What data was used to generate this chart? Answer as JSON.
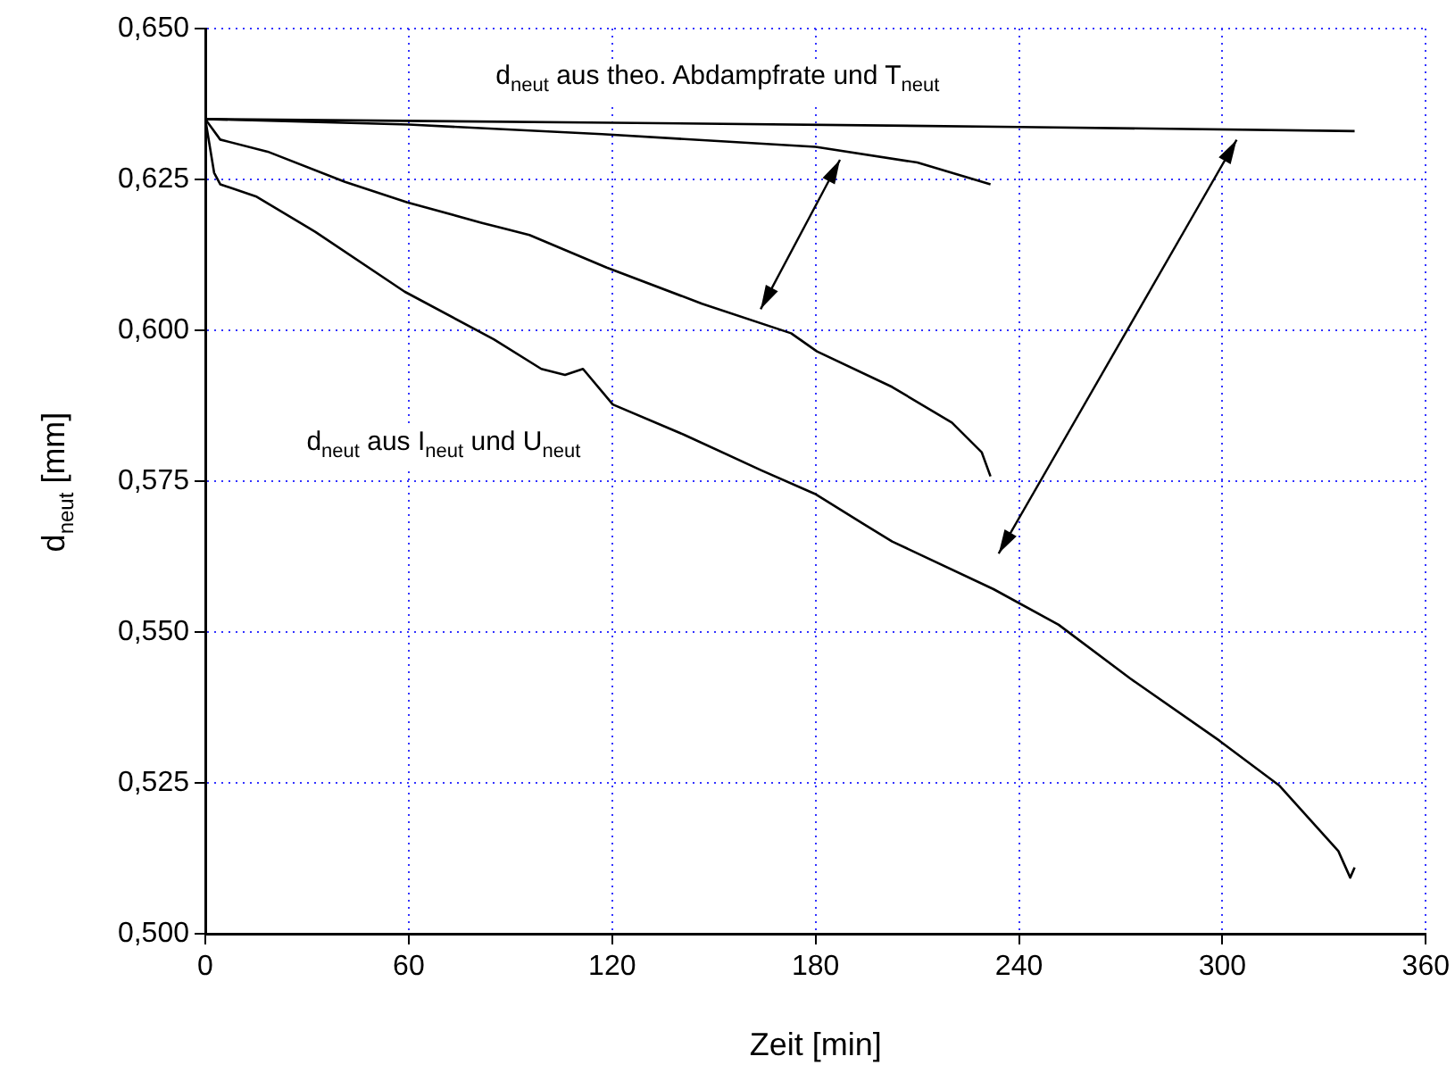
{
  "chart_data": {
    "type": "line",
    "xlabel": "Zeit [min]",
    "ylabel": "d$_{neut}$ [mm]",
    "annotations": [
      "d$_{neut}$ aus theo. Abdampfrate und T$_{neut}$",
      "d$_{neut}$ aus I$_{neut}$ und U$_{neut}$"
    ],
    "xlim": [
      0,
      360
    ],
    "xticks": [
      0,
      60,
      120,
      180,
      240,
      300,
      360
    ],
    "ylim": [
      0.5,
      0.65
    ],
    "yticks": [
      {
        "value": 0.5,
        "label": "0,500"
      },
      {
        "value": 0.525,
        "label": "0,525"
      },
      {
        "value": 0.55,
        "label": "0,550"
      },
      {
        "value": 0.575,
        "label": "0,575"
      },
      {
        "value": 0.6,
        "label": "0,600"
      },
      {
        "value": 0.625,
        "label": "0,625"
      },
      {
        "value": 0.65,
        "label": "0,650"
      }
    ],
    "grid": true,
    "marker": "none",
    "line_style": "solid",
    "series": [
      {
        "color": "#000000",
        "x": [
          0,
          120,
          240,
          339
        ],
        "values": [
          0.635,
          0.6344,
          0.6337,
          0.633
        ]
      },
      {
        "color": "#000000",
        "x": [
          0,
          60,
          117,
          180,
          210,
          231.6
        ],
        "values": [
          0.635,
          0.6341,
          0.6325,
          0.6304,
          0.6278,
          0.6242
        ]
      },
      {
        "color": "#000000",
        "x": [
          0,
          4.4,
          18.4,
          41.2,
          59.6,
          81.6,
          95.6,
          118.4,
          146.5,
          172.8,
          180.4,
          202.6,
          220.2,
          229,
          231.6
        ],
        "values": [
          0.635,
          0.6316,
          0.6296,
          0.6246,
          0.6212,
          0.6178,
          0.6158,
          0.6104,
          0.6044,
          0.5995,
          0.5965,
          0.5906,
          0.5847,
          0.5798,
          0.5758
        ]
      },
      {
        "color": "#000000",
        "x": [
          0,
          2.6,
          4.4,
          14.9,
          32.5,
          58.8,
          85.1,
          99.1,
          106.1,
          111.4,
          120.2,
          141.2,
          164,
          179.8,
          193.9,
          202.6,
          232.5,
          251.7,
          272.8,
          299.1,
          316.7,
          334.2,
          337.7,
          339
        ],
        "values": [
          0.635,
          0.6261,
          0.6242,
          0.6222,
          0.6163,
          0.6064,
          0.5985,
          0.5936,
          0.5926,
          0.5936,
          0.5877,
          0.5827,
          0.5768,
          0.5729,
          0.568,
          0.565,
          0.5571,
          0.5512,
          0.5423,
          0.532,
          0.5246,
          0.5137,
          0.5093,
          0.511
        ]
      }
    ]
  }
}
